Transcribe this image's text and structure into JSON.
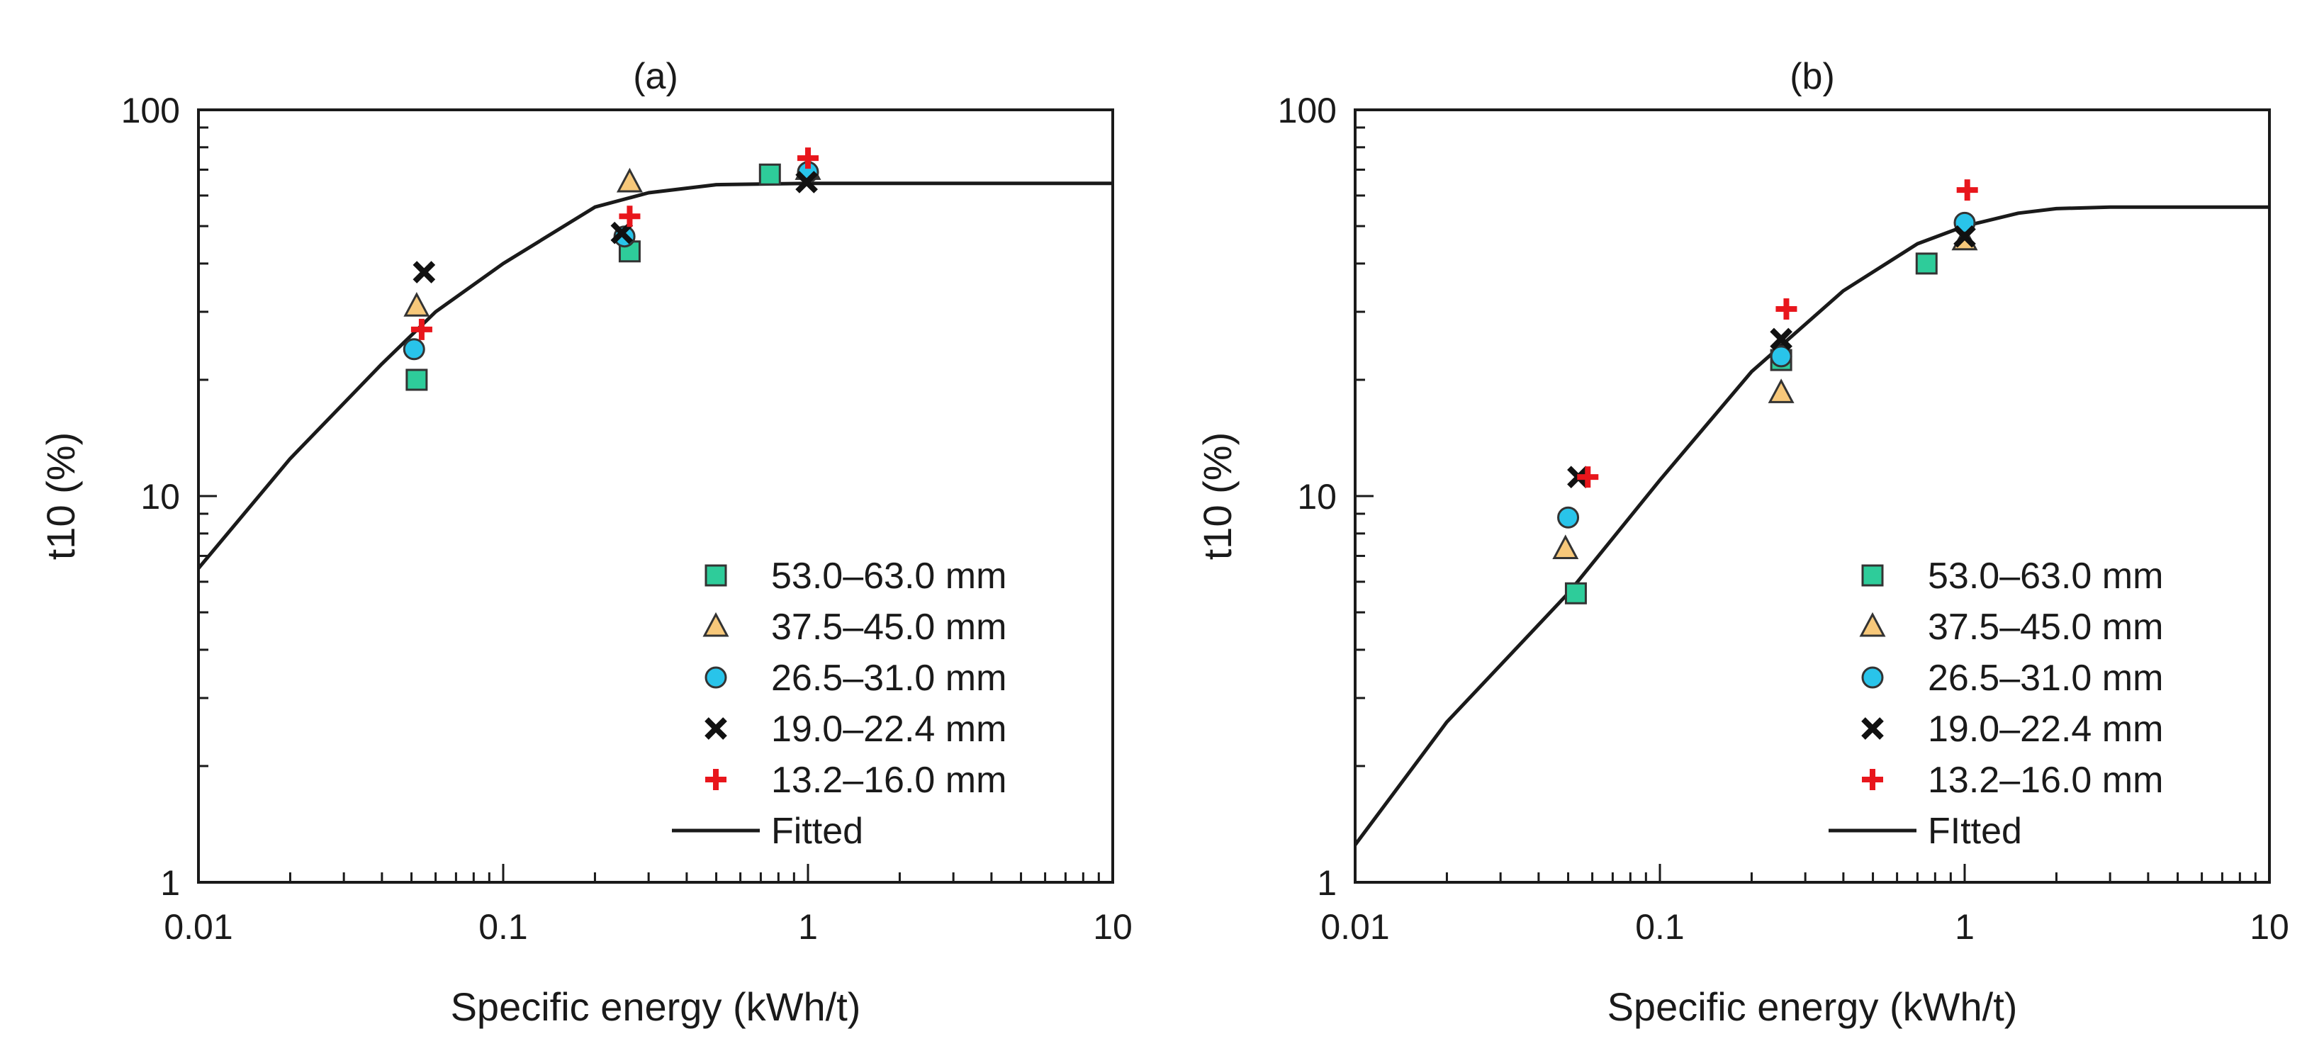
{
  "figure": {
    "colors": {
      "axis": "#1a1a1a",
      "fit_line": "#1a1a1a"
    }
  },
  "chart_data": [
    {
      "type": "scatter",
      "title": "(a)",
      "xlabel": "Specific energy (kWh/t)",
      "ylabel": "t10 (%)",
      "xscale": "log",
      "yscale": "log",
      "xlim": [
        0.01,
        10
      ],
      "ylim": [
        1,
        100
      ],
      "xticks": [
        0.01,
        0.1,
        1,
        10
      ],
      "xtick_labels": [
        "0.01",
        "0.1",
        "1",
        "10"
      ],
      "yticks": [
        1,
        10,
        100
      ],
      "ytick_labels": [
        "1",
        "10",
        "100"
      ],
      "grid": false,
      "legend_position": "bottom-right",
      "series": [
        {
          "name": "53.0–63.0 mm",
          "marker": "square",
          "color": "#2ecc9a",
          "points": [
            [
              0.052,
              20.0
            ],
            [
              0.26,
              43.0
            ],
            [
              0.75,
              68.0
            ]
          ]
        },
        {
          "name": "37.5–45.0 mm",
          "marker": "triangle",
          "color": "#f7c87a",
          "points": [
            [
              0.052,
              31.0
            ],
            [
              0.26,
              65.0
            ],
            [
              1.0,
              70.0
            ]
          ]
        },
        {
          "name": "26.5–31.0 mm",
          "marker": "circle",
          "color": "#29c4ea",
          "points": [
            [
              0.051,
              24.0
            ],
            [
              0.25,
              47.0
            ],
            [
              1.0,
              69.0
            ]
          ]
        },
        {
          "name": "19.0–22.4 mm",
          "marker": "x",
          "color": "#111111",
          "points": [
            [
              0.055,
              38.0
            ],
            [
              0.245,
              48.0
            ],
            [
              0.99,
              65.0
            ]
          ]
        },
        {
          "name": "13.2–16.0 mm",
          "marker": "plus",
          "color": "#e8161c",
          "points": [
            [
              0.054,
              27.0
            ],
            [
              0.26,
              53.0
            ],
            [
              1.0,
              75.0
            ]
          ]
        }
      ],
      "fit": {
        "name": "Fitted",
        "points": [
          [
            0.01,
            6.5
          ],
          [
            0.02,
            12.5
          ],
          [
            0.04,
            22.0
          ],
          [
            0.06,
            30.0
          ],
          [
            0.1,
            40.0
          ],
          [
            0.2,
            56.0
          ],
          [
            0.3,
            61.0
          ],
          [
            0.5,
            64.0
          ],
          [
            1,
            64.5
          ],
          [
            10,
            64.5
          ]
        ]
      }
    },
    {
      "type": "scatter",
      "title": "(b)",
      "xlabel": "Specific energy (kWh/t)",
      "ylabel": "t10 (%)",
      "xscale": "log",
      "yscale": "log",
      "xlim": [
        0.01,
        10
      ],
      "ylim": [
        1,
        100
      ],
      "xticks": [
        0.01,
        0.1,
        1,
        10
      ],
      "xtick_labels": [
        "0.01",
        "0.1",
        "1",
        "10"
      ],
      "yticks": [
        1,
        10,
        100
      ],
      "ytick_labels": [
        "1",
        "10",
        "100"
      ],
      "grid": false,
      "legend_position": "bottom-right",
      "series": [
        {
          "name": "53.0–63.0 mm",
          "marker": "square",
          "color": "#2ecc9a",
          "points": [
            [
              0.053,
              5.6
            ],
            [
              0.25,
              22.5
            ],
            [
              0.75,
              40.0
            ]
          ]
        },
        {
          "name": "37.5–45.0 mm",
          "marker": "triangle",
          "color": "#f7c87a",
          "points": [
            [
              0.049,
              7.3
            ],
            [
              0.25,
              18.5
            ],
            [
              1.0,
              46.0
            ]
          ]
        },
        {
          "name": "26.5–31.0 mm",
          "marker": "circle",
          "color": "#29c4ea",
          "points": [
            [
              0.05,
              8.8
            ],
            [
              0.25,
              23.0
            ],
            [
              1.0,
              51.0
            ]
          ]
        },
        {
          "name": "19.0–22.4 mm",
          "marker": "x",
          "color": "#111111",
          "points": [
            [
              0.054,
              11.2
            ],
            [
              0.25,
              25.5
            ],
            [
              1.0,
              47.0
            ]
          ]
        },
        {
          "name": "13.2–16.0 mm",
          "marker": "plus",
          "color": "#e8161c",
          "points": [
            [
              0.058,
              11.2
            ],
            [
              0.26,
              30.5
            ],
            [
              1.02,
              62.0
            ]
          ]
        }
      ],
      "fit": {
        "name": "FItted",
        "points": [
          [
            0.01,
            1.25
          ],
          [
            0.02,
            2.6
          ],
          [
            0.05,
            5.6
          ],
          [
            0.1,
            11.0
          ],
          [
            0.2,
            21.0
          ],
          [
            0.4,
            34.0
          ],
          [
            0.7,
            45.0
          ],
          [
            1,
            50.0
          ],
          [
            1.5,
            54.0
          ],
          [
            2,
            55.5
          ],
          [
            3,
            56.0
          ],
          [
            10,
            56.0
          ]
        ]
      }
    }
  ]
}
